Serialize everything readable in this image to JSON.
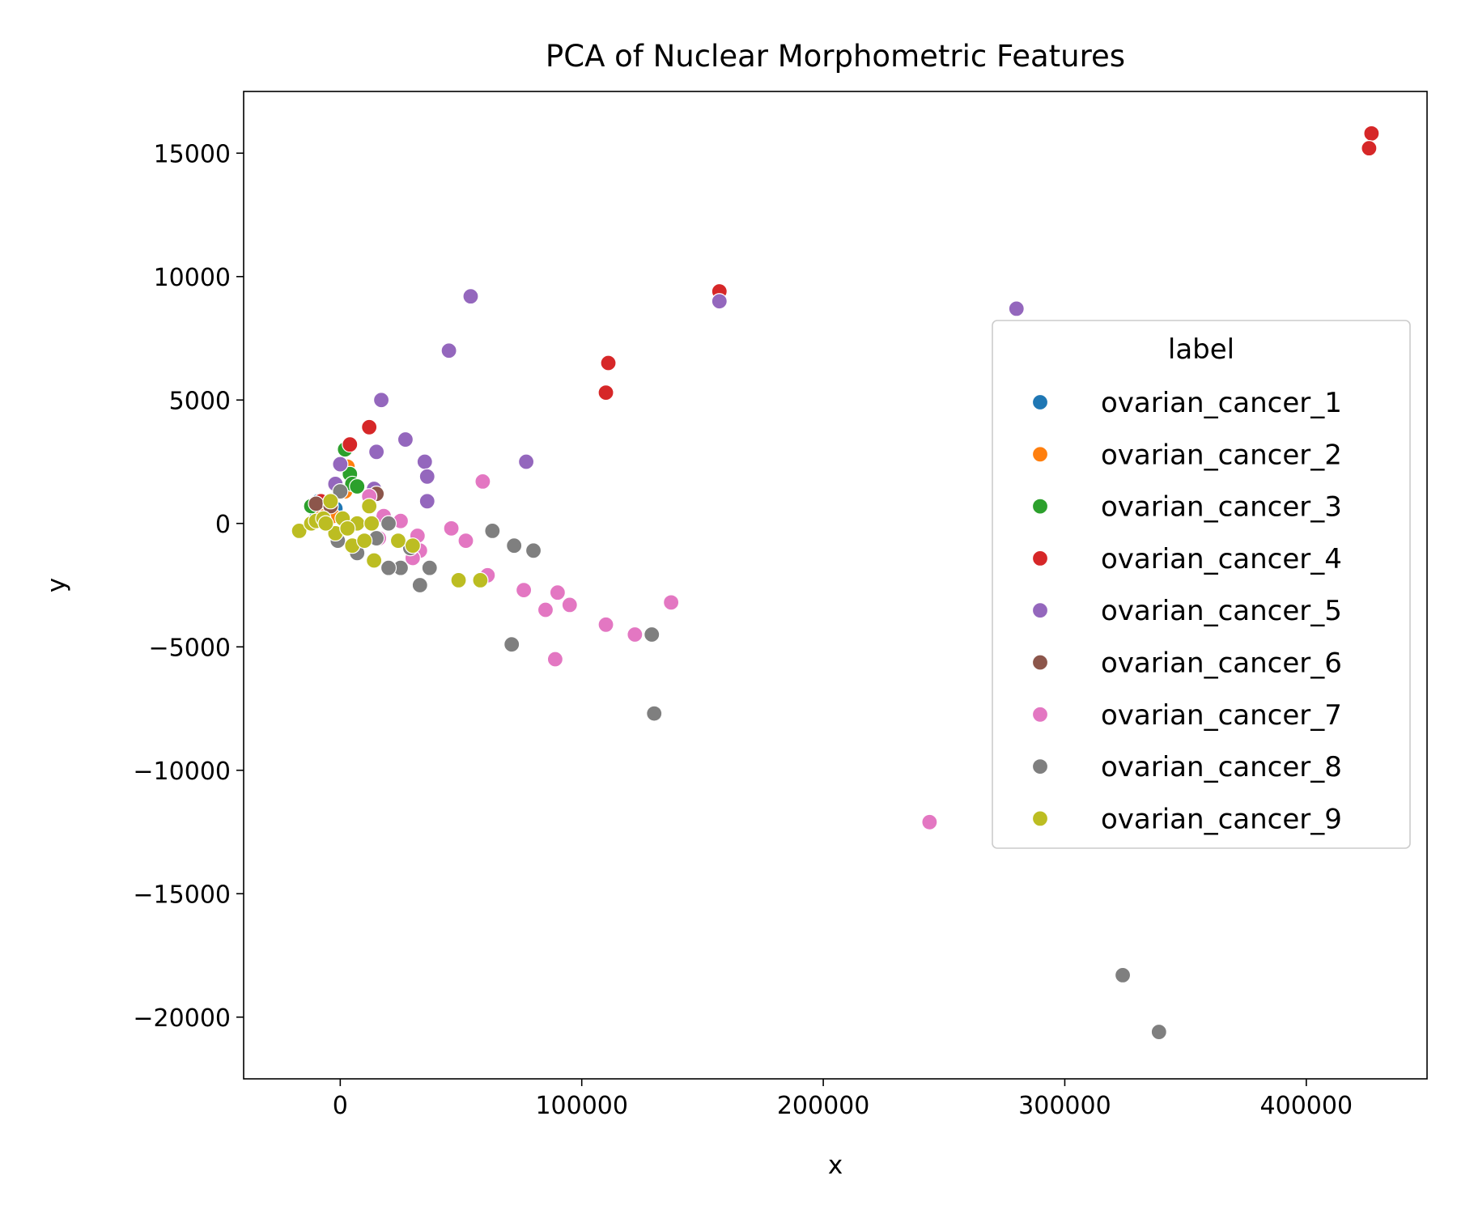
{
  "chart_data": {
    "type": "scatter",
    "title": "PCA of Nuclear Morphometric Features",
    "xlabel": "x",
    "ylabel": "y",
    "xlim": [
      -40000,
      450000
    ],
    "ylim": [
      -22500,
      17500
    ],
    "xticks": [
      0,
      100000,
      200000,
      300000,
      400000
    ],
    "yticks": [
      -20000,
      -15000,
      -10000,
      -5000,
      0,
      5000,
      10000,
      15000
    ],
    "xtick_labels": [
      "0",
      "100000",
      "200000",
      "300000",
      "400000"
    ],
    "ytick_labels": [
      "−20000",
      "−15000",
      "−10000",
      "−5000",
      "0",
      "5000",
      "10000",
      "15000"
    ],
    "grid": false,
    "legend": {
      "title": "label",
      "position": "center-right"
    },
    "series": [
      {
        "name": "ovarian_cancer_1",
        "color": "#1f77b4",
        "points": [
          [
            -9000,
            900
          ],
          [
            -5000,
            500
          ],
          [
            -10000,
            200
          ],
          [
            -2000,
            600
          ]
        ]
      },
      {
        "name": "ovarian_cancer_2",
        "color": "#ff7f0e",
        "points": [
          [
            3000,
            2300
          ],
          [
            -8000,
            600
          ],
          [
            -3000,
            300
          ],
          [
            2000,
            1300
          ]
        ]
      },
      {
        "name": "ovarian_cancer_3",
        "color": "#2ca02c",
        "points": [
          [
            2000,
            3000
          ],
          [
            4000,
            2000
          ],
          [
            5000,
            1600
          ],
          [
            7000,
            1500
          ],
          [
            -12000,
            700
          ]
        ]
      },
      {
        "name": "ovarian_cancer_4",
        "color": "#d62728",
        "points": [
          [
            427000,
            15800
          ],
          [
            426000,
            15200
          ],
          [
            157000,
            9400
          ],
          [
            111000,
            6500
          ],
          [
            110000,
            5300
          ],
          [
            12000,
            3900
          ],
          [
            4000,
            3200
          ],
          [
            -8000,
            900
          ]
        ]
      },
      {
        "name": "ovarian_cancer_5",
        "color": "#9467bd",
        "points": [
          [
            54000,
            9200
          ],
          [
            157000,
            9000
          ],
          [
            280000,
            8700
          ],
          [
            45000,
            7000
          ],
          [
            17000,
            5000
          ],
          [
            27000,
            3400
          ],
          [
            15000,
            2900
          ],
          [
            35000,
            2500
          ],
          [
            77000,
            2500
          ],
          [
            36000,
            1900
          ],
          [
            0,
            2400
          ],
          [
            -2000,
            1600
          ],
          [
            14000,
            1400
          ],
          [
            36000,
            900
          ]
        ]
      },
      {
        "name": "ovarian_cancer_6",
        "color": "#8c564b",
        "points": [
          [
            15000,
            1200
          ],
          [
            -10000,
            800
          ],
          [
            -4000,
            700
          ]
        ]
      },
      {
        "name": "ovarian_cancer_7",
        "color": "#e377c2",
        "points": [
          [
            59000,
            1700
          ],
          [
            12000,
            1100
          ],
          [
            46000,
            -200
          ],
          [
            52000,
            -700
          ],
          [
            32000,
            -500
          ],
          [
            33000,
            -1100
          ],
          [
            30000,
            -1400
          ],
          [
            61000,
            -2100
          ],
          [
            76000,
            -2700
          ],
          [
            90000,
            -2800
          ],
          [
            95000,
            -3300
          ],
          [
            85000,
            -3500
          ],
          [
            137000,
            -3200
          ],
          [
            110000,
            -4100
          ],
          [
            122000,
            -4500
          ],
          [
            89000,
            -5500
          ],
          [
            244000,
            -12100
          ],
          [
            18000,
            300
          ],
          [
            25000,
            100
          ],
          [
            16000,
            -600
          ]
        ]
      },
      {
        "name": "ovarian_cancer_8",
        "color": "#7f7f7f",
        "points": [
          [
            63000,
            -300
          ],
          [
            72000,
            -900
          ],
          [
            80000,
            -1100
          ],
          [
            37000,
            -1800
          ],
          [
            25000,
            -1800
          ],
          [
            20000,
            -1800
          ],
          [
            33000,
            -2500
          ],
          [
            71000,
            -4900
          ],
          [
            129000,
            -4500
          ],
          [
            130000,
            -7700
          ],
          [
            324000,
            -18300
          ],
          [
            339000,
            -20600
          ],
          [
            0,
            1300
          ],
          [
            20000,
            0
          ],
          [
            -1000,
            -700
          ],
          [
            7000,
            -1200
          ],
          [
            15000,
            -600
          ],
          [
            29000,
            -1000
          ]
        ]
      },
      {
        "name": "ovarian_cancer_9",
        "color": "#bcbd22",
        "points": [
          [
            -17000,
            -300
          ],
          [
            -12000,
            0
          ],
          [
            -10000,
            100
          ],
          [
            -7000,
            200
          ],
          [
            -4000,
            900
          ],
          [
            -2000,
            -400
          ],
          [
            1000,
            200
          ],
          [
            5000,
            -900
          ],
          [
            7000,
            0
          ],
          [
            10000,
            -700
          ],
          [
            12000,
            700
          ],
          [
            13000,
            0
          ],
          [
            14000,
            -1500
          ],
          [
            24000,
            -700
          ],
          [
            30000,
            -900
          ],
          [
            49000,
            -2300
          ],
          [
            58000,
            -2300
          ],
          [
            -6000,
            0
          ],
          [
            3000,
            -200
          ]
        ]
      }
    ]
  }
}
